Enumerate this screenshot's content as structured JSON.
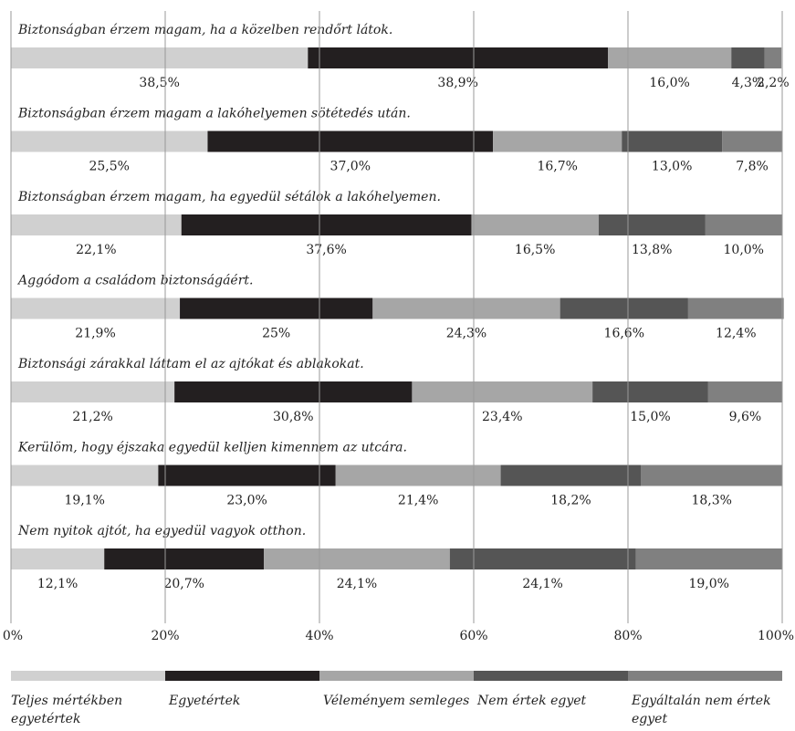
{
  "chart_data": {
    "type": "stacked_bar_horizontal",
    "categories": [
      "Biztonságban érzem magam, ha a közelben rendőrt látok.",
      "Biztonságban érzem magam a lakóhelyemen sötétedés után.",
      "Biztonságban érzem magam, ha egyedül sétálok a lakóhelyemen.",
      "Aggódom a családom biztonságáért.",
      "Biztonsági zárakkal láttam el az ajtókat és ablakokat.",
      "Kerülöm, hogy éjszaka egyedül kelljen kimennem az utcára.",
      "Nem nyitok ajtót, ha egyedül vagyok otthon."
    ],
    "series": [
      {
        "name": "Teljes mértékben egyetértek",
        "color": "#d0d0d0",
        "values": [
          38.5,
          25.5,
          22.1,
          21.9,
          21.2,
          19.1,
          12.1
        ],
        "value_labels": [
          "38,5%",
          "25,5%",
          "22,1%",
          "21,9%",
          "21,2%",
          "19,1%",
          "12,1%"
        ]
      },
      {
        "name": "Egyetértek",
        "color": "#231f20",
        "values": [
          38.9,
          37.0,
          37.6,
          25,
          30.8,
          23.0,
          20.7
        ],
        "value_labels": [
          "38,9%",
          "37,0%",
          "37,6%",
          "25%",
          "30,8%",
          "23,0%",
          "20,7%"
        ]
      },
      {
        "name": "Véleményem semleges",
        "color": "#a6a6a6",
        "values": [
          16.0,
          16.7,
          16.5,
          24.3,
          23.4,
          21.4,
          24.1
        ],
        "value_labels": [
          "16,0%",
          "16,7%",
          "16,5%",
          "24,3%",
          "23,4%",
          "21,4%",
          "24,1%"
        ]
      },
      {
        "name": "Nem értek egyet",
        "color": "#555555",
        "values": [
          4.3,
          13.0,
          13.8,
          16.6,
          15.0,
          18.2,
          24.1
        ],
        "value_labels": [
          "4,3%",
          "13,0%",
          "13,8%",
          "16,6%",
          "15,0%",
          "18,2%",
          "24,1%"
        ]
      },
      {
        "name": "Egyáltalán nem értek egyet",
        "color": "#808080",
        "values": [
          2.2,
          7.8,
          10.0,
          12.4,
          9.6,
          18.3,
          19.0
        ],
        "value_labels": [
          "2,2%",
          "7,8%",
          "10,0%",
          "12,4%",
          "9,6%",
          "18,3%",
          "19,0%"
        ]
      }
    ],
    "xlim": [
      0,
      100
    ],
    "xticks": [
      {
        "value": 0,
        "label": "0%"
      },
      {
        "value": 20,
        "label": "20%"
      },
      {
        "value": 40,
        "label": "40%"
      },
      {
        "value": 60,
        "label": "60%"
      },
      {
        "value": 80,
        "label": "80%"
      },
      {
        "value": 100,
        "label": "100%"
      }
    ],
    "grid": true
  }
}
